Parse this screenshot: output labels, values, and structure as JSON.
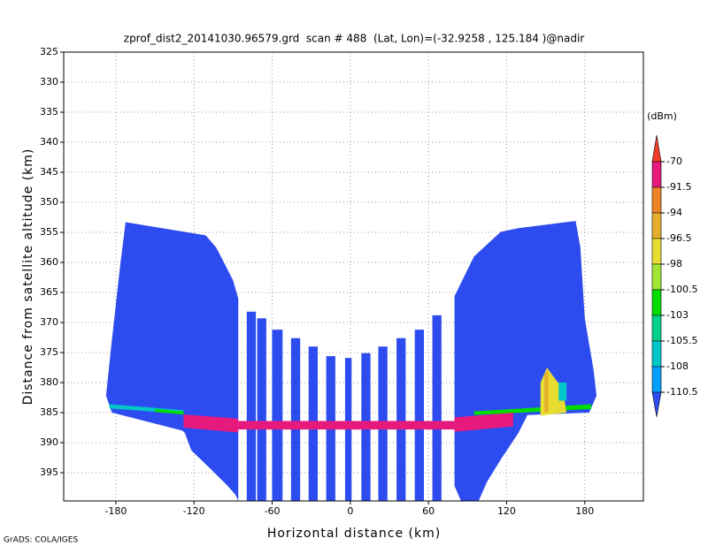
{
  "chart_data": {
    "type": "heatmap",
    "title": "zprof_dist2_20141030.96579.grd  scan # 488  (Lat, Lon)=(-32.9258 , 125.184 )@nadir",
    "x_label": "Horizontal distance (km)",
    "y_label": "Distance from satellite altitude (km)",
    "footer": "GrADS: COLA/IGES",
    "xlim": [
      -220,
      225
    ],
    "ylim": [
      325,
      399.7
    ],
    "y_inverted": true,
    "grid": true,
    "xticks": [
      -180,
      -120,
      -60,
      0,
      60,
      120,
      180
    ],
    "yticks": [
      325,
      330,
      335,
      340,
      345,
      350,
      355,
      360,
      365,
      370,
      375,
      380,
      385,
      390,
      395
    ],
    "colorbar": {
      "label": "(dBm)",
      "levels": [
        -70,
        -91.5,
        -94,
        -96.5,
        -98,
        -100.5,
        -103,
        -105.5,
        -108,
        -110.5
      ],
      "colors": [
        "#f03c2b",
        "#e6197d",
        "#f08228",
        "#e6af2d",
        "#e6dc32",
        "#a0e632",
        "#00dc00",
        "#00d28c",
        "#00c8c8",
        "#00a0ff",
        "#2d4cf0"
      ]
    },
    "regions": [
      {
        "value": -112,
        "points": [
          [
            -172.5,
            353.3
          ],
          [
            -111,
            355.5
          ],
          [
            -103,
            357.5
          ],
          [
            -97,
            360
          ],
          [
            -90,
            363
          ],
          [
            -86,
            366
          ],
          [
            -86,
            399.7
          ],
          [
            -88,
            398.7
          ],
          [
            -95,
            397
          ],
          [
            -109,
            394
          ],
          [
            -122,
            391.3
          ],
          [
            -127,
            388.4
          ],
          [
            -129,
            388
          ],
          [
            -183,
            385
          ],
          [
            -187.5,
            382.2
          ],
          [
            -183.4,
            373.7
          ],
          [
            -176.6,
            360.4
          ]
        ]
      },
      {
        "value": -112,
        "points": [
          [
            80,
            365.6
          ],
          [
            95,
            359
          ],
          [
            115.5,
            354.9
          ],
          [
            129,
            354.3
          ],
          [
            173,
            353.1
          ],
          [
            176.6,
            357.5
          ],
          [
            180,
            369.3
          ],
          [
            186.8,
            378
          ],
          [
            189,
            382.2
          ],
          [
            183.4,
            385
          ],
          [
            136,
            385.4
          ],
          [
            129,
            388.4
          ],
          [
            115.5,
            392.8
          ],
          [
            105,
            396.5
          ],
          [
            98.5,
            399.7
          ],
          [
            85,
            399.7
          ],
          [
            80,
            397.2
          ]
        ]
      },
      {
        "value": -112,
        "points": [
          [
            -79.5,
            368.2
          ],
          [
            -72.5,
            368.2
          ],
          [
            -72.5,
            399.7
          ],
          [
            -79.5,
            399.7
          ]
        ]
      },
      {
        "value": -112,
        "points": [
          [
            -71.5,
            369.3
          ],
          [
            -64.5,
            369.3
          ],
          [
            -64.5,
            399.7
          ],
          [
            -71.5,
            399.7
          ]
        ]
      },
      {
        "value": -112,
        "points": [
          [
            -60,
            371.2
          ],
          [
            -52,
            371.2
          ],
          [
            -52,
            399.7
          ],
          [
            -60,
            399.7
          ]
        ]
      },
      {
        "value": -112,
        "points": [
          [
            -45.5,
            372.6
          ],
          [
            -38.5,
            372.6
          ],
          [
            -38.5,
            399.7
          ],
          [
            -45.5,
            399.7
          ]
        ]
      },
      {
        "value": -112,
        "points": [
          [
            -32,
            374
          ],
          [
            -25,
            374
          ],
          [
            -25,
            399.7
          ],
          [
            -32,
            399.7
          ]
        ]
      },
      {
        "value": -112,
        "points": [
          [
            -18.5,
            375.6
          ],
          [
            -11.5,
            375.6
          ],
          [
            -11.5,
            399.7
          ],
          [
            -18.5,
            399.7
          ]
        ]
      },
      {
        "value": -112,
        "points": [
          [
            -4,
            375.9
          ],
          [
            1,
            375.9
          ],
          [
            1,
            399.7
          ],
          [
            -4,
            399.7
          ]
        ]
      },
      {
        "value": -112,
        "points": [
          [
            8.5,
            375.1
          ],
          [
            15.5,
            375.1
          ],
          [
            15.5,
            399.7
          ],
          [
            8.5,
            399.7
          ]
        ]
      },
      {
        "value": -112,
        "points": [
          [
            21.5,
            374
          ],
          [
            28.5,
            374
          ],
          [
            28.5,
            399.7
          ],
          [
            21.5,
            399.7
          ]
        ]
      },
      {
        "value": -112,
        "points": [
          [
            35.5,
            372.6
          ],
          [
            42.5,
            372.6
          ],
          [
            42.5,
            399.7
          ],
          [
            35.5,
            399.7
          ]
        ]
      },
      {
        "value": -112,
        "points": [
          [
            49.5,
            371.2
          ],
          [
            56.5,
            371.2
          ],
          [
            56.5,
            399.7
          ],
          [
            49.5,
            399.7
          ]
        ]
      },
      {
        "value": -112,
        "points": [
          [
            63,
            368.8
          ],
          [
            70,
            368.8
          ],
          [
            70,
            399.7
          ],
          [
            63,
            399.7
          ]
        ]
      },
      {
        "value": -107,
        "points": [
          [
            -185,
            383.6
          ],
          [
            -128,
            384.6
          ],
          [
            -128,
            385.2
          ],
          [
            -185,
            384.3
          ]
        ]
      },
      {
        "value": -102,
        "points": [
          [
            -150,
            384.4
          ],
          [
            -128,
            384.8
          ],
          [
            -128,
            385.3
          ],
          [
            -150,
            384.9
          ]
        ]
      },
      {
        "value": -102,
        "points": [
          [
            95,
            384.8
          ],
          [
            185,
            383.6
          ],
          [
            185,
            384.4
          ],
          [
            95,
            385.4
          ]
        ]
      },
      {
        "value": -80,
        "points": [
          [
            -128,
            385.3
          ],
          [
            -86,
            386
          ],
          [
            -86,
            388.3
          ],
          [
            -128,
            387.5
          ]
        ]
      },
      {
        "value": -80,
        "points": [
          [
            -86,
            386.4
          ],
          [
            80,
            386.4
          ],
          [
            80,
            387.8
          ],
          [
            -86,
            387.8
          ]
        ]
      },
      {
        "value": -80,
        "points": [
          [
            80,
            385.8
          ],
          [
            125,
            385
          ],
          [
            125,
            387.3
          ],
          [
            80,
            388.2
          ]
        ]
      },
      {
        "value": -97,
        "points": [
          [
            146,
            380
          ],
          [
            151,
            377.5
          ],
          [
            156,
            379
          ],
          [
            163,
            381
          ],
          [
            166,
            385
          ],
          [
            146,
            385.5
          ]
        ]
      },
      {
        "value": -95,
        "points": [
          [
            149,
            378.5
          ],
          [
            152,
            378
          ],
          [
            152,
            385
          ],
          [
            149,
            385
          ]
        ]
      },
      {
        "value": -107,
        "points": [
          [
            160,
            380
          ],
          [
            166,
            380
          ],
          [
            166,
            383
          ],
          [
            160,
            383
          ]
        ]
      }
    ]
  }
}
